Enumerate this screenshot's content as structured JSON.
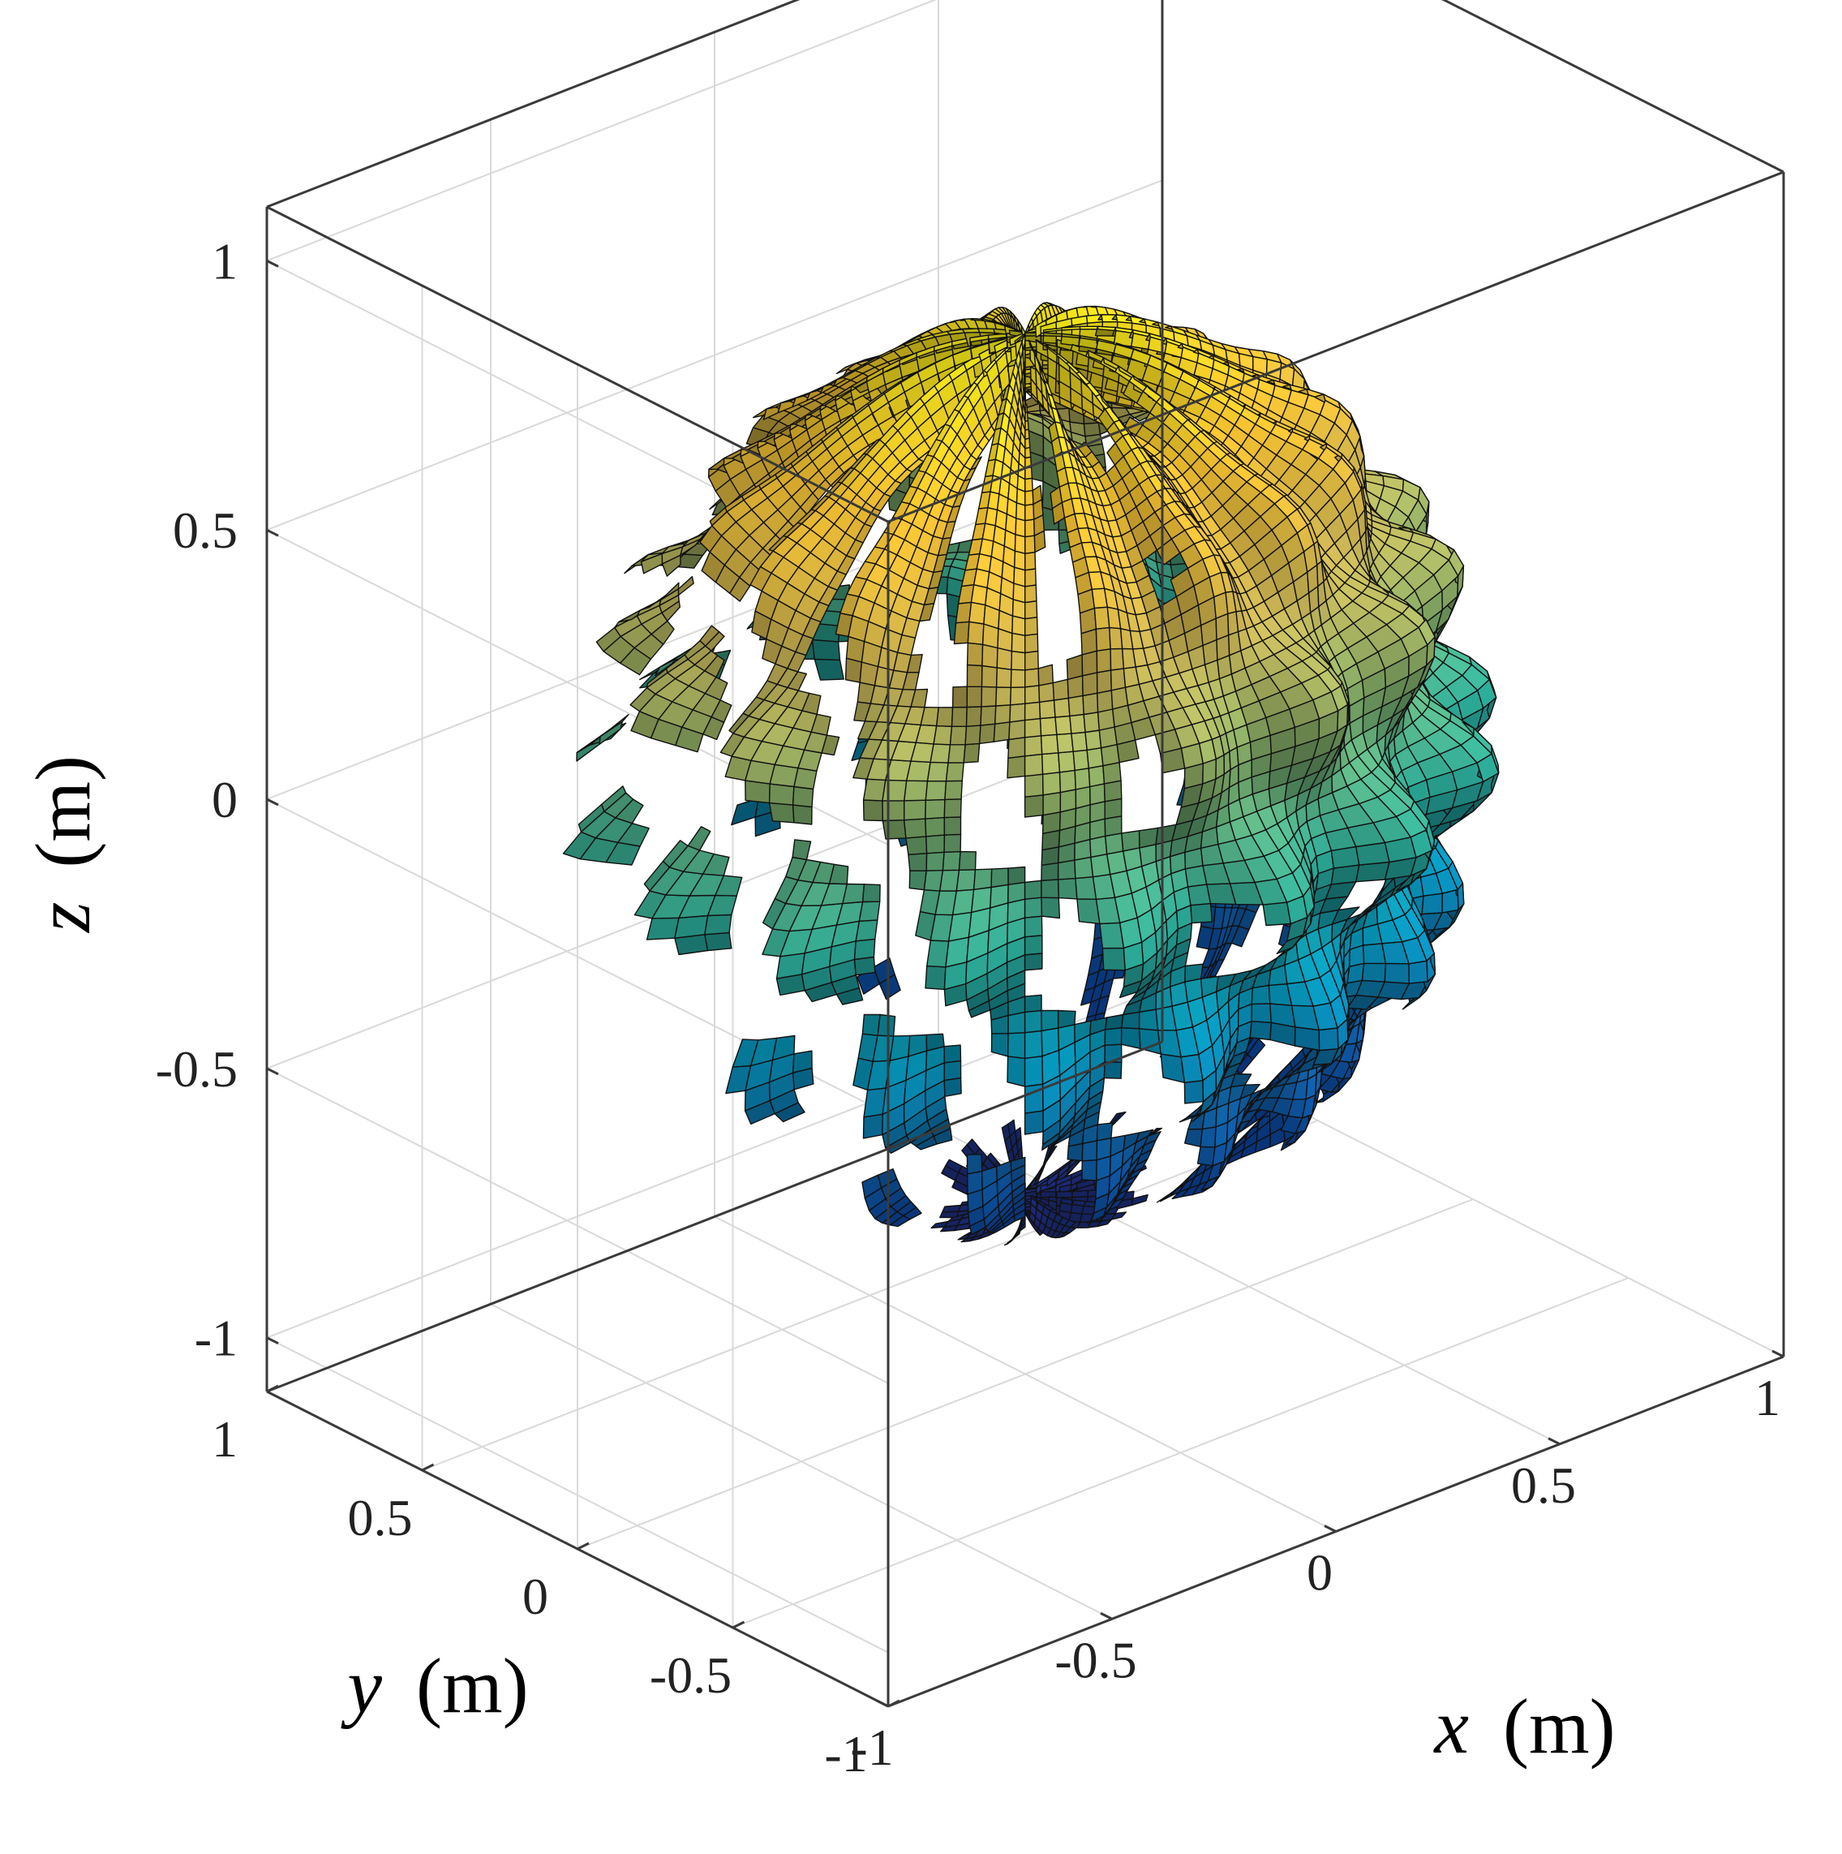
{
  "chart_data": {
    "type": "surface3d",
    "description_visible": "3D surface of a lobed (bumpy) sphere, colored by z using a parula-style colormap",
    "xlabel_var": "x",
    "xlabel_unit": "(m)",
    "ylabel_var": "y",
    "ylabel_unit": "(m)",
    "zlabel_var": "z",
    "zlabel_unit": "(m)",
    "xlim": [
      -1,
      1
    ],
    "ylim": [
      -1,
      1
    ],
    "zlim": [
      -1.1,
      1.1
    ],
    "xticks": [
      "-1",
      "-0.5",
      "0",
      "0.5",
      "1"
    ],
    "yticks": [
      "-1",
      "-0.5",
      "0",
      "0.5",
      "1"
    ],
    "zticks": [
      "-1",
      "-0.5",
      "0",
      "0.5",
      "1"
    ],
    "x_tick_values": [
      -1,
      -0.5,
      0,
      0.5,
      1
    ],
    "y_tick_values": [
      -1,
      -0.5,
      0,
      0.5,
      1
    ],
    "z_tick_values": [
      -1,
      -0.5,
      0,
      0.5,
      1
    ],
    "grid": true,
    "box": true,
    "surface": {
      "base_radius": 0.78,
      "lobes_azimuthal": 16,
      "lobes_polar": 8,
      "colormap": [
        "#352a87",
        "#0f5cdd",
        "#1481d6",
        "#06a4ca",
        "#2eb7a4",
        "#87bf77",
        "#d1bb59",
        "#fec832",
        "#f9fb0e"
      ],
      "edge_color": "#111111"
    }
  }
}
